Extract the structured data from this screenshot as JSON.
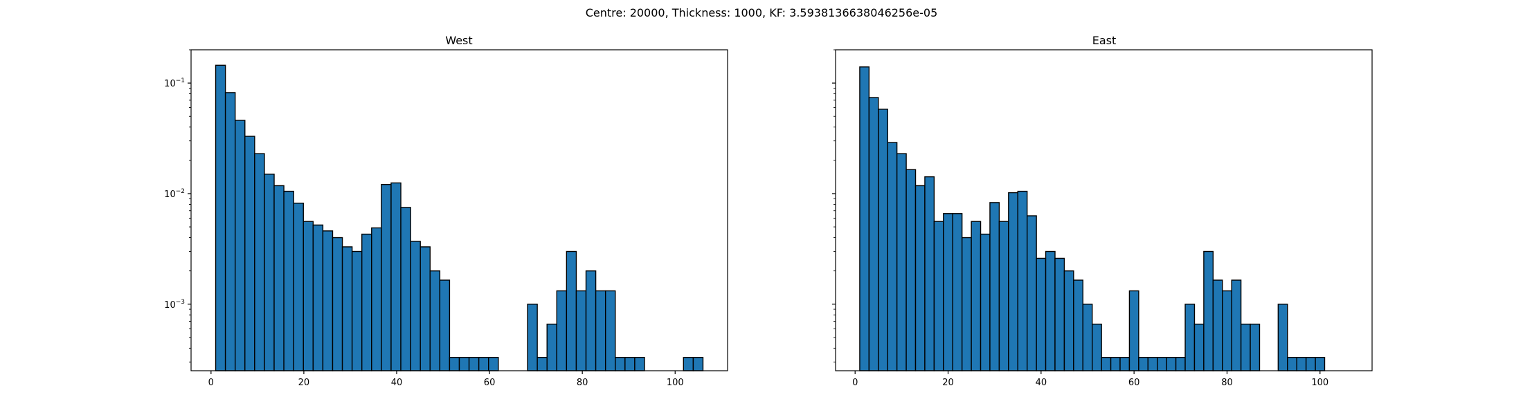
{
  "figure": {
    "suptitle": "Centre: 20000, Thickness: 1000, KF: 3.5938136638046256e-05"
  },
  "colors": {
    "bar_fill": "#1f77b4",
    "bar_edge": "#000000",
    "axes_edge": "#000000",
    "background": "#ffffff"
  },
  "chart_data": [
    {
      "type": "bar",
      "title": "West",
      "xlabel": "",
      "ylabel": "",
      "x_scale": "linear",
      "y_scale": "log",
      "xlim": [
        -4.3,
        111.3
      ],
      "ylim": [
        0.00025,
        0.2
      ],
      "x_ticks": [
        0,
        20,
        40,
        60,
        80,
        100
      ],
      "y_ticks": [
        {
          "value": 0.001,
          "base": "10",
          "exponent": "−3"
        },
        {
          "value": 0.01,
          "base": "10",
          "exponent": "−2"
        },
        {
          "value": 0.1,
          "base": "10",
          "exponent": "−1"
        }
      ],
      "bin_start": 1,
      "bin_width": 2.1,
      "values": [
        0.145,
        0.082,
        0.046,
        0.033,
        0.023,
        0.015,
        0.0118,
        0.0105,
        0.0082,
        0.0056,
        0.0052,
        0.0046,
        0.004,
        0.0033,
        0.003,
        0.0043,
        0.0049,
        0.0121,
        0.0125,
        0.0075,
        0.0037,
        0.0033,
        0.002,
        0.00165,
        0.00033,
        0.00033,
        0.00033,
        0.00033,
        0.00033,
        0,
        0,
        0,
        0.001,
        0.00033,
        0.00066,
        0.00132,
        0.003,
        0.00132,
        0.002,
        0.00132,
        0.00132,
        0.00033,
        0.00033,
        0.00033,
        0,
        0,
        0,
        0,
        0.00033,
        0.00033
      ]
    },
    {
      "type": "bar",
      "title": "East",
      "xlabel": "",
      "ylabel": "",
      "x_scale": "linear",
      "y_scale": "log",
      "xlim": [
        -4.2,
        111.2
      ],
      "ylim": [
        0.00025,
        0.2
      ],
      "x_ticks": [
        0,
        20,
        40,
        60,
        80,
        100
      ],
      "y_ticks": [
        {
          "value": 0.001
        },
        {
          "value": 0.01
        },
        {
          "value": 0.1
        }
      ],
      "bin_start": 1,
      "bin_width": 2.0,
      "values": [
        0.14,
        0.074,
        0.058,
        0.029,
        0.023,
        0.0165,
        0.0118,
        0.0142,
        0.0056,
        0.0066,
        0.0066,
        0.004,
        0.0056,
        0.0043,
        0.0083,
        0.0056,
        0.0102,
        0.0105,
        0.0063,
        0.0026,
        0.003,
        0.0026,
        0.002,
        0.00165,
        0.001,
        0.00066,
        0.00033,
        0.00033,
        0.00033,
        0.00132,
        0.00033,
        0.00033,
        0.00033,
        0.00033,
        0.00033,
        0.001,
        0.00066,
        0.003,
        0.00165,
        0.00132,
        0.00165,
        0.00066,
        0.00066,
        0,
        0,
        0.001,
        0.00033,
        0.00033,
        0.00033,
        0.00033
      ]
    }
  ]
}
